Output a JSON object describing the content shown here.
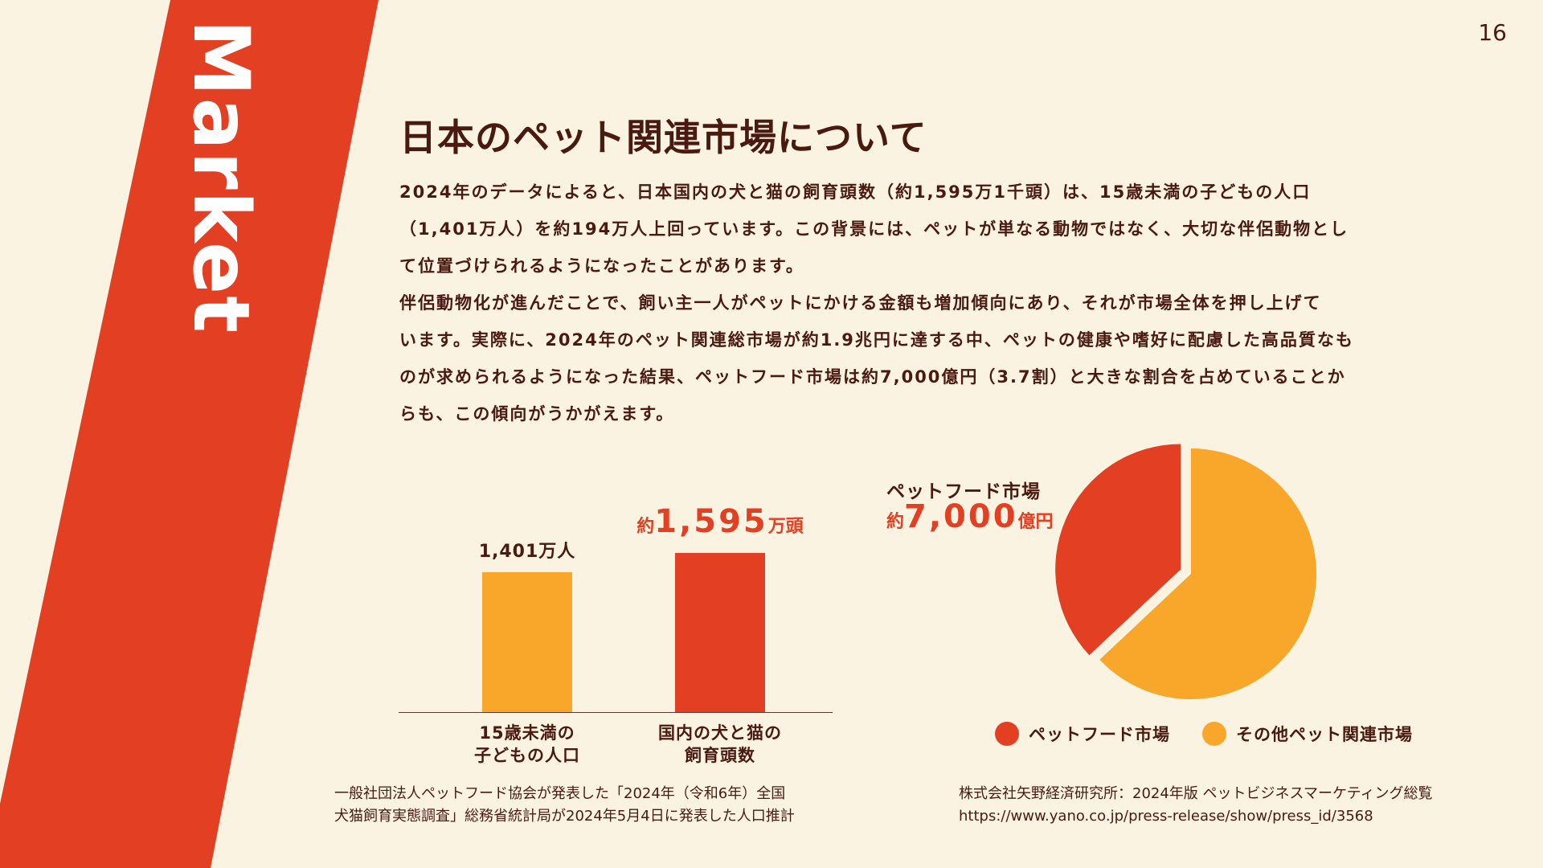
{
  "page": {
    "number": "16",
    "section_label": "Market",
    "colors": {
      "background": "#FAF3E1",
      "accent_red": "#E33F22",
      "accent_orange": "#F9A72B",
      "text": "#4A1A10"
    }
  },
  "title": "日本のペット関連市場について",
  "body_lines": [
    "2024年のデータによると、日本国内の犬と猫の飼育頭数（約1,595万1千頭）は、15歳未満の子どもの人口",
    "（1,401万人）を約194万人上回っています。この背景には、ペットが単なる動物ではなく、大切な伴侶動物とし",
    "て位置づけられるようになったことがあります。",
    "伴侶動物化が進んだことで、飼い主一人がペットにかける金額も増加傾向にあり、それが市場全体を押し上げて",
    "います。実際に、2024年のペット関連総市場が約1.9兆円に達する中、ペットの健康や嗜好に配慮した高品質なも",
    "のが求められるようになった結果、ペットフード市場は約7,000億円（3.7割）と大きな割合を占めていることか",
    "らも、この傾向がうかがえます。"
  ],
  "chart_data": [
    {
      "type": "bar",
      "categories": [
        "15歳未満の子どもの人口",
        "国内の犬と猫の飼育頭数"
      ],
      "category_lines": [
        [
          "15歳未満の",
          "子どもの人口"
        ],
        [
          "国内の犬と猫の",
          "飼育頭数"
        ]
      ],
      "values": [
        1401,
        1595
      ],
      "unit": "万",
      "colors": [
        "#F9A72B",
        "#E33F22"
      ],
      "data_labels": {
        "bar1": "1,401万人",
        "bar2": {
          "prefix": "約",
          "value": "1,595",
          "suffix": "万頭"
        }
      },
      "ylim": [
        0,
        1850
      ]
    },
    {
      "type": "pie",
      "title": "ペットフード市場",
      "value_label": {
        "prefix": "約",
        "value": "7,000",
        "suffix": "億円"
      },
      "slices": [
        {
          "label": "ペットフード市場",
          "value": 0.37,
          "color": "#E33F22"
        },
        {
          "label": "その他ペット関連市場",
          "value": 0.63,
          "color": "#F9A72B"
        }
      ],
      "legend": "bottom"
    }
  ],
  "sources": {
    "left": [
      "一般社団法人ペットフード協会が発表した「2024年（令和6年）全国",
      "犬猫飼育実態調査」総務省統計局が2024年5月4日に発表した人口推計"
    ],
    "right": [
      "株式会社矢野経済研究所：2024年版 ペットビジネスマーケティング総覧",
      "https://www.yano.co.jp/press-release/show/press_id/3568"
    ]
  }
}
